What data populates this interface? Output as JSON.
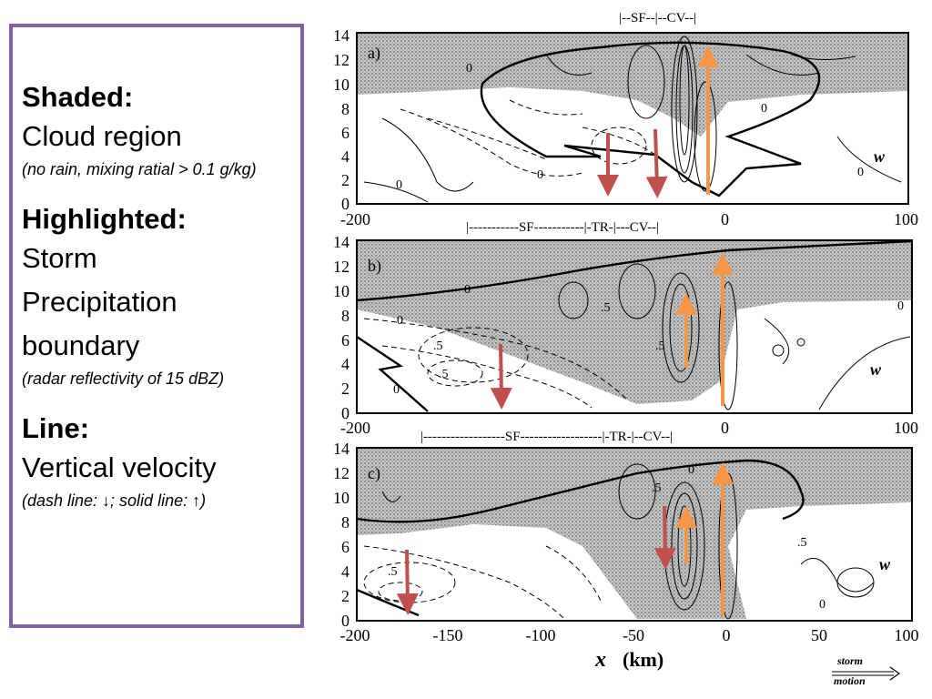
{
  "legend": {
    "shaded_heading": "Shaded:",
    "shaded_body": "Cloud region",
    "shaded_note": "(no rain, mixing ratial > 0.1 g/kg)",
    "highlighted_heading": "Highlighted:",
    "highlighted_body_1": "Storm",
    "highlighted_body_2": "Precipitation",
    "highlighted_body_3": "boundary",
    "highlighted_note": "(radar reflectivity of 15 dBZ)",
    "line_heading": "Line:",
    "line_body": "Vertical velocity",
    "line_note": "(dash line: ↓; solid line: ↑)"
  },
  "figure": {
    "y_ticks": [
      "0",
      "2",
      "4",
      "6",
      "8",
      "10",
      "12",
      "14"
    ],
    "x_ticks": [
      "-200",
      "-150",
      "-100",
      "-50",
      "0",
      "50",
      "100"
    ],
    "x_label_var": "x",
    "x_label_unit": "(km)",
    "storm_motion_line1": "storm",
    "storm_motion_line2": "motion",
    "variable_label": "w",
    "contour_label_zero": "0",
    "contour_label_half": ".5",
    "panels": [
      {
        "label": "a)",
        "header": "|--SF--|--CV--|"
      },
      {
        "label": "b)",
        "header": "|-----------SF-----------|-TR-|---CV--|"
      },
      {
        "label": "c)",
        "header": "|------------------SF------------------|-TR-|--CV--|"
      }
    ]
  },
  "colors": {
    "legend_border": "#8064a2",
    "updraft_arrow": "#f79646",
    "downdraft_arrow": "#c0504d",
    "shading": "#b8b8b8"
  }
}
